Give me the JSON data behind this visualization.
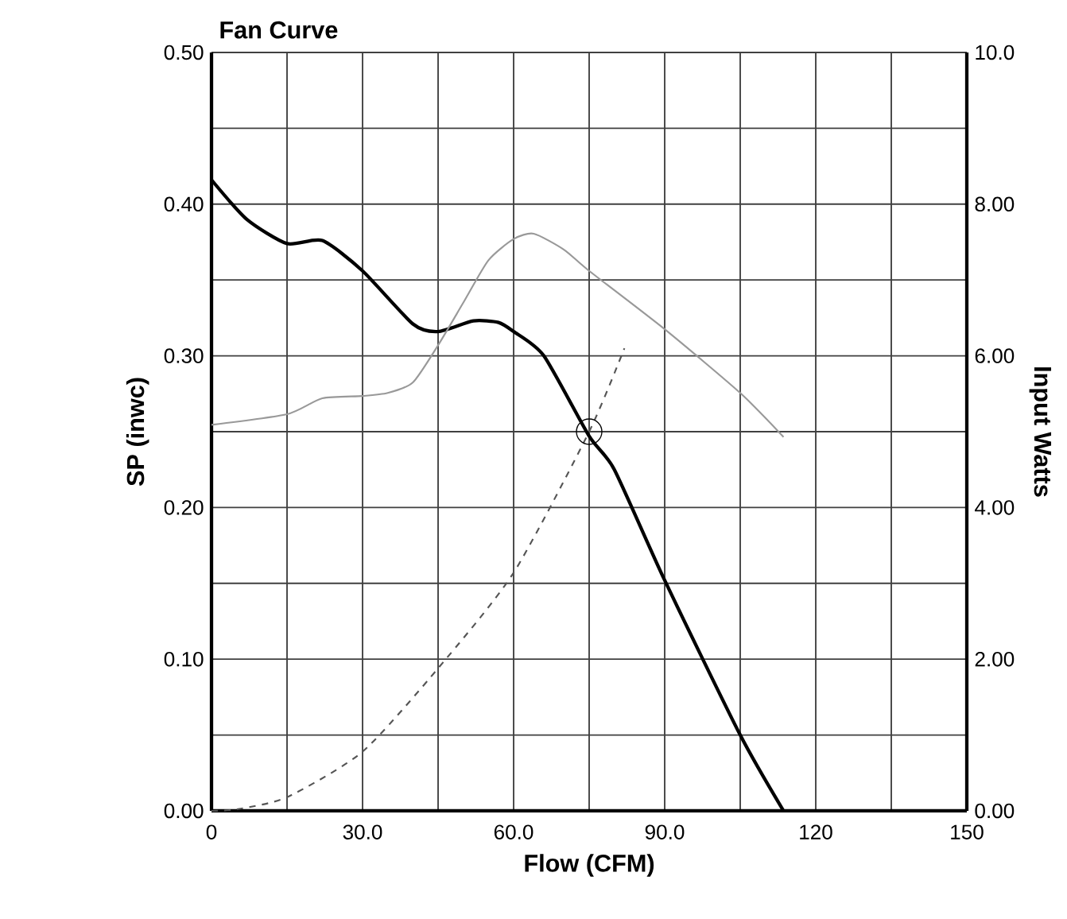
{
  "chart_data": {
    "type": "line",
    "title": "Fan Curve",
    "xlabel": "Flow (CFM)",
    "ylabel": "SP (inwc)",
    "y2label": "Input Watts",
    "xlim": [
      0,
      150
    ],
    "xticks": [
      0,
      {
        "value": 15,
        "label": null
      },
      {
        "value": 30,
        "label": "30.0"
      },
      {
        "value": 45,
        "label": null
      },
      {
        "value": 60,
        "label": "60.0"
      },
      {
        "value": 75,
        "label": null
      },
      {
        "value": 90,
        "label": "90.0"
      },
      {
        "value": 105,
        "label": null
      },
      120,
      {
        "value": 135,
        "label": null
      },
      150
    ],
    "ylim": [
      0,
      0.5
    ],
    "yticks": [
      {
        "value": 0,
        "label": "0.00"
      },
      {
        "value": 0.05,
        "label": null
      },
      {
        "value": 0.1,
        "label": "0.10"
      },
      {
        "value": 0.15,
        "label": null
      },
      {
        "value": 0.2,
        "label": "0.20"
      },
      {
        "value": 0.25,
        "label": null
      },
      {
        "value": 0.3,
        "label": "0.30"
      },
      {
        "value": 0.35,
        "label": null
      },
      {
        "value": 0.4,
        "label": "0.40"
      },
      {
        "value": 0.45,
        "label": null
      },
      {
        "value": 0.5,
        "label": "0.50"
      }
    ],
    "y2lim": [
      0,
      10
    ],
    "y2ticks": [
      {
        "value": 0,
        "label": "0.00"
      },
      {
        "value": 1,
        "label": null
      },
      {
        "value": 2,
        "label": "2.00"
      },
      {
        "value": 3,
        "label": null
      },
      {
        "value": 4,
        "label": "4.00"
      },
      {
        "value": 5,
        "label": null
      },
      {
        "value": 6,
        "label": "6.00"
      },
      {
        "value": 7,
        "label": null
      },
      {
        "value": 8,
        "label": "8.00"
      },
      {
        "value": 9,
        "label": null
      },
      {
        "value": 10,
        "label": "10.0"
      }
    ],
    "grid": true,
    "series": [
      {
        "color": "#000000",
        "x": [
          0,
          7,
          15,
          22,
          30,
          40,
          45,
          52,
          57,
          60,
          66,
          75,
          80,
          90,
          105,
          113.6
        ],
        "values": [
          0.416,
          0.39,
          0.374,
          0.376,
          0.356,
          0.321,
          0.316,
          0.323,
          0.322,
          0.316,
          0.3,
          0.247,
          0.225,
          0.152,
          0.05,
          0
        ]
      },
      {
        "color": "#999999",
        "axis": "y2",
        "x": [
          0,
          15,
          22,
          30,
          35,
          40,
          45,
          50,
          55,
          60,
          64,
          70,
          75,
          90,
          105,
          113.6
        ],
        "values": [
          5.09,
          5.23,
          5.44,
          5.47,
          5.51,
          5.65,
          6.14,
          6.7,
          7.26,
          7.54,
          7.61,
          7.4,
          7.12,
          6.35,
          5.51,
          4.93
        ]
      },
      {
        "color": "#555555",
        "line_style": "dashed",
        "x": [
          0,
          5,
          15,
          30,
          45,
          60,
          75,
          82
        ],
        "values": [
          0,
          0.001,
          0.009,
          0.039,
          0.094,
          0.157,
          0.25,
          0.305
        ]
      },
      {
        "type": "scatter",
        "color": "#000000",
        "marker": "circle",
        "x": [
          75
        ],
        "values": [
          0.25
        ]
      }
    ]
  }
}
